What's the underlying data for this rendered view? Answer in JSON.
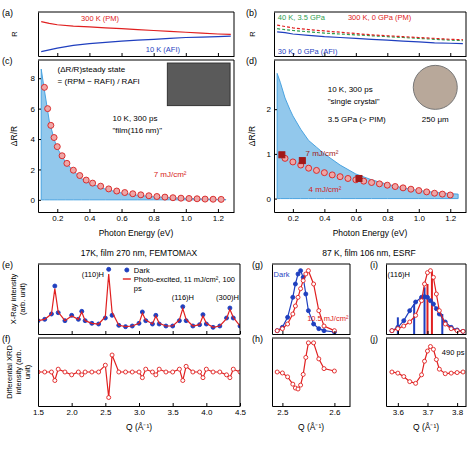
{
  "chart_data": [
    {
      "panel": "(a)",
      "type": "line",
      "y_label": "R",
      "xlim": [
        0.08,
        1.3
      ],
      "ylim": [
        0,
        1
      ],
      "xticks": [
        0.2,
        0.4,
        0.6,
        0.8,
        1.0,
        1.2
      ],
      "yticks": [],
      "tick_labels": false,
      "x": [
        0.1,
        0.15,
        0.2,
        0.3,
        0.4,
        0.5,
        0.6,
        0.7,
        0.8,
        0.9,
        1.0,
        1.1,
        1.2,
        1.28
      ],
      "series": [
        {
          "name": "300 K (PM)",
          "color": "#e02020",
          "line_style": "solid",
          "values": [
            0.78,
            0.74,
            0.71,
            0.68,
            0.66,
            0.64,
            0.62,
            0.6,
            0.58,
            0.56,
            0.54,
            0.52,
            0.5,
            0.49
          ]
        },
        {
          "name": "10 K (AFI)",
          "color": "#1f3fbf",
          "line_style": "solid",
          "values": [
            0.1,
            0.14,
            0.18,
            0.24,
            0.28,
            0.31,
            0.34,
            0.36,
            0.38,
            0.4,
            0.42,
            0.43,
            0.44,
            0.45
          ]
        }
      ]
    },
    {
      "panel": "(b)",
      "type": "line",
      "y_label": "R",
      "xlim": [
        0.08,
        1.3
      ],
      "ylim": [
        0,
        1
      ],
      "xticks": [
        0.2,
        0.4,
        0.6,
        0.8,
        1.0,
        1.2
      ],
      "yticks": [],
      "tick_labels": false,
      "x": [
        0.1,
        0.15,
        0.2,
        0.3,
        0.4,
        0.5,
        0.6,
        0.7,
        0.8,
        0.9,
        1.0,
        1.1,
        1.2,
        1.28
      ],
      "series": [
        {
          "name": "40 K, 3.5 GPa",
          "color": "#2e9e4f",
          "line_style": "dashed",
          "values": [
            0.62,
            0.6,
            0.58,
            0.55,
            0.52,
            0.5,
            0.48,
            0.46,
            0.44,
            0.42,
            0.4,
            0.38,
            0.36,
            0.35
          ]
        },
        {
          "name": "300 K, 0 GPa (PM)",
          "color": "#e02020",
          "line_style": "dashed",
          "values": [
            0.7,
            0.67,
            0.64,
            0.6,
            0.57,
            0.54,
            0.51,
            0.48,
            0.46,
            0.44,
            0.42,
            0.4,
            0.38,
            0.37
          ]
        },
        {
          "name": "30 K, 0 GPa (AFI)",
          "color": "#1f3fbf",
          "line_style": "solid",
          "values": [
            0.55,
            0.53,
            0.5,
            0.47,
            0.44,
            0.42,
            0.4,
            0.38,
            0.36,
            0.34,
            0.32,
            0.3,
            0.29,
            0.28
          ]
        }
      ]
    },
    {
      "panel": "(c)",
      "type": "line",
      "x_label": "Photon Energy (eV)",
      "y_label": "ΔR/R",
      "xlim": [
        0.08,
        1.3
      ],
      "ylim": [
        -0.8,
        9.2
      ],
      "xticks": [
        0.2,
        0.4,
        0.6,
        0.8,
        {
          "value": 1,
          "label": "1.0"
        },
        1.2
      ],
      "yticks": [
        0,
        2,
        4,
        6,
        8
      ],
      "series": [
        {
          "type": "area",
          "color": "#4aa3e0",
          "x": [
            0.1,
            0.12,
            0.15,
            0.18,
            0.2,
            0.25,
            0.3,
            0.35,
            0.4,
            0.5,
            0.6,
            0.7,
            0.8,
            0.9,
            1.0,
            1.1,
            1.2,
            1.25
          ],
          "values": [
            8.6,
            7.2,
            5.2,
            4.0,
            3.4,
            2.5,
            1.9,
            1.4,
            1.1,
            0.7,
            0.45,
            0.3,
            0.2,
            0.14,
            0.1,
            0.06,
            0.03,
            0.02
          ]
        },
        {
          "name": "7 mJ/cm²",
          "type": "scatter",
          "marker": "circle",
          "color": "#d62020",
          "x": [
            0.12,
            0.14,
            0.16,
            0.18,
            0.2,
            0.23,
            0.26,
            0.3,
            0.34,
            0.38,
            0.42,
            0.47,
            0.52,
            0.57,
            0.62,
            0.67,
            0.72,
            0.77,
            0.82,
            0.87,
            0.92,
            0.97,
            1.02,
            1.07,
            1.12,
            1.17,
            1.22
          ],
          "values": [
            7.4,
            6.0,
            4.9,
            4.1,
            3.5,
            2.9,
            2.4,
            1.95,
            1.6,
            1.3,
            1.1,
            0.9,
            0.72,
            0.58,
            0.48,
            0.4,
            0.33,
            0.27,
            0.22,
            0.18,
            0.14,
            0.11,
            0.09,
            0.07,
            0.05,
            0.04,
            0.03
          ]
        }
      ],
      "annotations": [
        "(ΔR/R)steady state",
        "= (RPM − RAFI) / RAFI",
        "10 K, 300 ps",
        "\"film(116 nm)\""
      ]
    },
    {
      "panel": "(d)",
      "type": "line",
      "x_label": "Photon Energy (eV)",
      "y_label": "ΔR/R",
      "xlim": [
        0.08,
        1.3
      ],
      "ylim": [
        -0.3,
        3.1
      ],
      "xticks": [
        0.2,
        0.4,
        0.6,
        0.8,
        {
          "value": 1,
          "label": "1.0"
        },
        1.2
      ],
      "yticks": [
        0,
        1,
        2
      ],
      "series": [
        {
          "type": "area",
          "color": "#4aa3e0",
          "x": [
            0.1,
            0.12,
            0.15,
            0.18,
            0.2,
            0.25,
            0.3,
            0.35,
            0.4,
            0.5,
            0.6,
            0.7,
            0.8,
            0.9,
            1.0,
            1.1,
            1.2,
            1.25
          ],
          "values": [
            2.8,
            2.6,
            2.25,
            2.0,
            1.85,
            1.55,
            1.3,
            1.15,
            1.0,
            0.75,
            0.55,
            0.42,
            0.32,
            0.24,
            0.18,
            0.14,
            0.11,
            0.1
          ]
        },
        {
          "name": "4 mJ/cm²",
          "type": "scatter",
          "marker": "circle",
          "color": "#d62020",
          "x": [
            0.15,
            0.2,
            0.25,
            0.3,
            0.35,
            0.4,
            0.45,
            0.5,
            0.55,
            0.6,
            0.65,
            0.7,
            0.75,
            0.8,
            0.85,
            0.9,
            0.95,
            1.0,
            1.05,
            1.1,
            1.15,
            1.2
          ],
          "values": [
            0.9,
            0.82,
            0.75,
            0.68,
            0.63,
            0.58,
            0.53,
            0.49,
            0.45,
            0.42,
            0.39,
            0.36,
            0.33,
            0.3,
            0.27,
            0.24,
            0.21,
            0.18,
            0.15,
            0.12,
            0.1,
            0.08
          ]
        },
        {
          "name": "7 mJ/cm²",
          "type": "scatter",
          "marker": "square",
          "color": "#a01818",
          "x": [
            0.13,
            0.26,
            0.62
          ],
          "values": [
            0.98,
            0.85,
            0.45
          ]
        }
      ],
      "annotations": [
        "10 K, 300 ps",
        "\"single crystal\"",
        "3.5 GPa (> PIM)",
        "250 μm"
      ]
    },
    {
      "panel": "(e)",
      "type": "line",
      "title": "17K, film 270 nm, FEMTOMAX",
      "y_label": "X-Ray intensity (arb. unit)",
      "xlim": [
        1.5,
        4.5
      ],
      "ylim": [
        0,
        1.05
      ],
      "xticks": [
        1.5,
        2,
        2.5,
        3,
        3.5,
        4,
        4.5
      ],
      "yticks": [],
      "tick_labels": false,
      "legend": "upper right",
      "x": [
        1.5,
        1.6,
        1.7,
        1.75,
        1.8,
        1.9,
        2.0,
        2.1,
        2.15,
        2.2,
        2.3,
        2.4,
        2.5,
        2.55,
        2.6,
        2.7,
        2.8,
        2.9,
        3.0,
        3.05,
        3.1,
        3.2,
        3.25,
        3.3,
        3.4,
        3.5,
        3.6,
        3.65,
        3.7,
        3.8,
        3.9,
        3.95,
        4.0,
        4.1,
        4.2,
        4.3,
        4.35,
        4.4,
        4.5
      ],
      "series": [
        {
          "name": "Dark",
          "type": "scatter",
          "marker": "filled-circle",
          "color": "#1f3fbf",
          "values": [
            0.2,
            0.22,
            0.3,
            0.72,
            0.32,
            0.2,
            0.28,
            0.22,
            0.34,
            0.2,
            0.16,
            0.15,
            0.24,
            0.97,
            0.28,
            0.13,
            0.11,
            0.12,
            0.16,
            0.33,
            0.2,
            0.15,
            0.28,
            0.15,
            0.12,
            0.12,
            0.2,
            0.41,
            0.2,
            0.12,
            0.14,
            0.29,
            0.15,
            0.1,
            0.12,
            0.24,
            0.39,
            0.24,
            0.12
          ]
        },
        {
          "name": "Photo-excited, 11 mJ/cm², 100 ps",
          "type": "line",
          "color": "#e02020",
          "line_style": "solid",
          "values": [
            0.2,
            0.22,
            0.3,
            0.68,
            0.33,
            0.2,
            0.27,
            0.22,
            0.33,
            0.2,
            0.16,
            0.15,
            0.26,
            0.9,
            0.33,
            0.13,
            0.11,
            0.12,
            0.16,
            0.31,
            0.21,
            0.15,
            0.27,
            0.16,
            0.12,
            0.12,
            0.21,
            0.38,
            0.22,
            0.12,
            0.14,
            0.27,
            0.16,
            0.1,
            0.12,
            0.23,
            0.37,
            0.25,
            0.12
          ]
        }
      ],
      "annotations": [
        "(110)H",
        "(116)H",
        "(300)H"
      ]
    },
    {
      "panel": "(f)",
      "type": "line",
      "x_label": "Q (Å⁻¹)",
      "y_label": "Differential XRD intensity (arb. unit)",
      "xlim": [
        1.5,
        4.5
      ],
      "ylim": [
        -0.6,
        0.6
      ],
      "xticks": [
        1.5,
        {
          "value": 2,
          "label": "2.0"
        },
        2.5,
        {
          "value": 3,
          "label": "3.0"
        },
        3.5,
        {
          "value": 4,
          "label": "4.0"
        },
        4.5
      ],
      "yticks": [],
      "tick_labels": "x",
      "x": [
        1.5,
        1.6,
        1.7,
        1.75,
        1.8,
        1.9,
        2.0,
        2.1,
        2.15,
        2.2,
        2.3,
        2.4,
        2.5,
        2.55,
        2.6,
        2.7,
        2.8,
        2.9,
        3.0,
        3.05,
        3.1,
        3.2,
        3.25,
        3.3,
        3.4,
        3.5,
        3.6,
        3.65,
        3.7,
        3.8,
        3.9,
        3.95,
        4.0,
        4.1,
        4.2,
        4.3,
        4.35,
        4.4,
        4.5
      ],
      "series": [
        {
          "type": "line",
          "marker": "open-circle",
          "color": "#e02020",
          "values": [
            0,
            0,
            0,
            -0.15,
            0.05,
            0,
            -0.05,
            0,
            -0.05,
            0,
            0,
            0,
            0.12,
            -0.45,
            0.3,
            0,
            0,
            0,
            0,
            -0.1,
            0.05,
            0,
            -0.05,
            0.05,
            0,
            0,
            0.05,
            -0.15,
            0.1,
            0,
            0,
            -0.1,
            0.05,
            0,
            0,
            -0.05,
            -0.1,
            0.05,
            0
          ]
        }
      ]
    },
    {
      "panel": "(g)",
      "type": "line",
      "title": "87 K, film 106 nm, ESRF",
      "xlim": [
        2.48,
        2.63
      ],
      "ylim": [
        0,
        1.05
      ],
      "xticks": [
        2.5,
        2.6
      ],
      "yticks": [],
      "tick_labels": false,
      "x": [
        2.49,
        2.5,
        2.51,
        2.52,
        2.525,
        2.53,
        2.535,
        2.54,
        2.545,
        2.55,
        2.56,
        2.57,
        2.58,
        2.6
      ],
      "series": [
        {
          "name": "Dark",
          "type": "line",
          "marker": "filled-circle",
          "color": "#1f3fbf",
          "values": [
            0.05,
            0.1,
            0.25,
            0.55,
            0.75,
            0.9,
            0.95,
            0.85,
            0.6,
            0.35,
            0.15,
            0.08,
            0.05,
            0.03
          ]
        },
        {
          "name": "10.5 mJ/cm²",
          "type": "line",
          "marker": "open-circle",
          "color": "#e02020",
          "values": [
            0.05,
            0.08,
            0.15,
            0.3,
            0.42,
            0.55,
            0.68,
            0.8,
            0.9,
            0.95,
            0.75,
            0.35,
            0.12,
            0.05
          ]
        }
      ]
    },
    {
      "panel": "(h)",
      "type": "line",
      "x_label": "Q (Å⁻¹)",
      "xlim": [
        2.48,
        2.63
      ],
      "ylim": [
        -0.7,
        0.7
      ],
      "xticks": [
        2.5,
        2.6
      ],
      "yticks": [],
      "tick_labels": "x",
      "x": [
        2.49,
        2.5,
        2.51,
        2.52,
        2.525,
        2.53,
        2.535,
        2.54,
        2.545,
        2.55,
        2.56,
        2.57,
        2.58,
        2.6
      ],
      "series": [
        {
          "type": "line",
          "marker": "open-circle",
          "color": "#e02020",
          "values": [
            0,
            -0.02,
            -0.1,
            -0.25,
            -0.33,
            -0.35,
            -0.27,
            -0.05,
            0.3,
            0.6,
            0.6,
            0.27,
            0.07,
            0.02
          ]
        }
      ]
    },
    {
      "panel": "(i)",
      "type": "line",
      "xlim": [
        3.56,
        3.83
      ],
      "ylim": [
        0,
        1.05
      ],
      "xticks": [
        3.6,
        3.7,
        3.8
      ],
      "yticks": [],
      "tick_labels": false,
      "x": [
        3.58,
        3.6,
        3.62,
        3.64,
        3.66,
        3.68,
        3.69,
        3.7,
        3.71,
        3.72,
        3.73,
        3.74,
        3.76,
        3.78,
        3.8,
        3.82
      ],
      "series": [
        {
          "type": "bar",
          "color": "#1f3fbf",
          "x": [
            3.6,
            3.655,
            3.69,
            3.75
          ],
          "values": [
            0.25,
            0.45,
            0.7,
            0.3
          ]
        },
        {
          "type": "bar",
          "color": "#e02020",
          "x": [
            3.7,
            3.715
          ],
          "values": [
            0.75,
            0.95
          ]
        },
        {
          "type": "line",
          "marker": "filled-circle",
          "color": "#1f3fbf",
          "values": [
            0.05,
            0.1,
            0.2,
            0.35,
            0.48,
            0.55,
            0.56,
            0.55,
            0.5,
            0.45,
            0.38,
            0.3,
            0.18,
            0.1,
            0.06,
            0.04
          ]
        },
        {
          "type": "line",
          "marker": "open-circle",
          "color": "#e02020",
          "values": [
            0.05,
            0.08,
            0.12,
            0.18,
            0.28,
            0.5,
            0.75,
            0.92,
            0.95,
            0.85,
            0.6,
            0.35,
            0.15,
            0.08,
            0.05,
            0.04
          ]
        }
      ],
      "annotations": [
        "(116)H"
      ]
    },
    {
      "panel": "(j)",
      "type": "line",
      "x_label": "Q (Å⁻¹)",
      "xlim": [
        3.56,
        3.83
      ],
      "ylim": [
        -0.6,
        0.6
      ],
      "xticks": [
        3.6,
        3.7,
        3.8
      ],
      "yticks": [],
      "tick_labels": "x",
      "x": [
        3.58,
        3.6,
        3.62,
        3.64,
        3.66,
        3.68,
        3.69,
        3.7,
        3.71,
        3.72,
        3.73,
        3.74,
        3.76,
        3.78,
        3.8,
        3.82
      ],
      "series": [
        {
          "type": "line",
          "marker": "open-circle",
          "color": "#e02020",
          "values": [
            0,
            -0.02,
            -0.08,
            -0.17,
            -0.2,
            -0.05,
            0.19,
            0.37,
            0.45,
            0.4,
            0.22,
            0.05,
            -0.03,
            -0.02,
            -0.01,
            0
          ]
        }
      ],
      "annotations": [
        "490 ps"
      ]
    }
  ]
}
